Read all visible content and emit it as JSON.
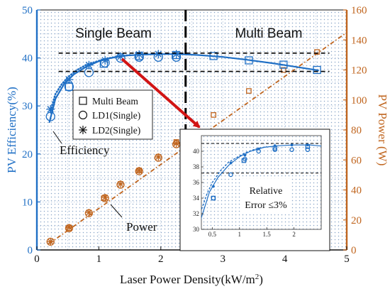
{
  "chart_data": {
    "type": "line",
    "xlabel": "Laser Power Density(kW/m",
    "xlabel_sup": "2",
    "xlabel_close": ")",
    "ylabel": "PV Efficiency(%)",
    "y2label": "PV Power (W)",
    "xlim": [
      0,
      5
    ],
    "ylim": [
      0,
      50
    ],
    "y2lim": [
      0,
      160
    ],
    "x_ticks": [
      "0",
      "1",
      "2",
      "3",
      "4",
      "5"
    ],
    "y_ticks": [
      "0",
      "10",
      "20",
      "30",
      "40",
      "50"
    ],
    "y2_ticks": [
      "0",
      "20",
      "40",
      "60",
      "80",
      "100",
      "120",
      "140",
      "160"
    ],
    "grid": true,
    "divider_x": 2.4,
    "ref_lines_y": [
      41,
      37.2
    ],
    "regions": {
      "left": "Single Beam",
      "right": "Multi Beam"
    },
    "colors": {
      "efficiency": "#1f6fc5",
      "power": "#c0651e",
      "divider": "#000000"
    },
    "efficiency_fit": {
      "x": [
        0.2,
        0.3,
        0.45,
        0.6,
        0.8,
        1.0,
        1.2,
        1.45,
        1.7,
        2.0,
        2.3,
        2.6,
        3.0,
        3.4,
        3.8,
        4.2,
        4.55
      ],
      "y": [
        26.5,
        31.5,
        34.8,
        36.6,
        38.2,
        39.3,
        40.0,
        40.5,
        40.7,
        40.8,
        40.8,
        40.6,
        40.2,
        39.6,
        38.9,
        38.1,
        37.4
      ]
    },
    "efficiency_dotted": {
      "x": [
        0.22,
        0.3,
        0.4,
        0.5,
        0.65,
        0.8,
        0.95,
        1.1,
        1.3,
        1.5
      ],
      "y": [
        29.0,
        32.5,
        34.5,
        36.0,
        37.5,
        38.6,
        39.2,
        39.8,
        40.3,
        40.6
      ]
    },
    "series": [
      {
        "name": "Multi Beam",
        "marker": "square",
        "x": [
          0.52,
          1.08,
          1.65,
          2.25,
          2.85,
          3.42,
          3.98,
          4.52
        ],
        "y": [
          34.0,
          38.8,
          40.4,
          40.6,
          40.4,
          39.5,
          38.6,
          37.5
        ]
      },
      {
        "name": "LD1(Single)",
        "marker": "circle",
        "x": [
          0.22,
          0.52,
          0.84,
          1.1,
          1.35,
          1.65,
          1.96,
          2.25
        ],
        "y": [
          27.8,
          34.0,
          37.0,
          39.0,
          40.0,
          40.2,
          40.2,
          40.2
        ]
      },
      {
        "name": "LD2(Single)",
        "marker": "asterisk",
        "x": [
          0.22,
          0.52,
          0.84,
          1.1,
          1.35,
          1.65,
          1.96,
          2.25
        ],
        "y": [
          29.3,
          35.5,
          38.5,
          39.5,
          40.3,
          40.7,
          40.8,
          40.8
        ]
      }
    ],
    "power": {
      "fit": {
        "x": [
          0.2,
          5.0
        ],
        "y": [
          4.2,
          145.0
        ]
      },
      "multi": {
        "x": [
          0.52,
          1.08,
          1.65,
          2.25,
          2.85,
          3.42,
          3.98,
          4.52
        ],
        "y": [
          14.5,
          34.5,
          53.0,
          72.0,
          90.0,
          106.0,
          120.0,
          132.0
        ]
      },
      "ld1": {
        "x": [
          0.22,
          0.52,
          0.84,
          1.1,
          1.35,
          1.65,
          1.96,
          2.25
        ],
        "y": [
          5.5,
          14.5,
          24.5,
          34.5,
          43.5,
          52.5,
          61.5,
          70.5
        ]
      },
      "ld2": {
        "x": [
          0.22,
          0.52,
          0.84,
          1.1,
          1.35,
          1.65,
          1.96,
          2.25
        ],
        "y": [
          5.5,
          15.0,
          25.0,
          35.0,
          44.0,
          53.0,
          62.0,
          71.0
        ]
      }
    },
    "annotations": {
      "efficiency": "Efficiency",
      "power": "Power"
    },
    "inset": {
      "xlim": [
        0.3,
        2.5
      ],
      "ylim": [
        30,
        42
      ],
      "x_ticks": [
        "0.5",
        "1",
        "1.5",
        "2"
      ],
      "y_ticks": [
        "30",
        "32",
        "34",
        "36",
        "38",
        "40"
      ],
      "note_line1": "Relative",
      "note_line2": "Error ≤3%",
      "ref_lines_y": [
        41,
        37.2
      ]
    }
  }
}
